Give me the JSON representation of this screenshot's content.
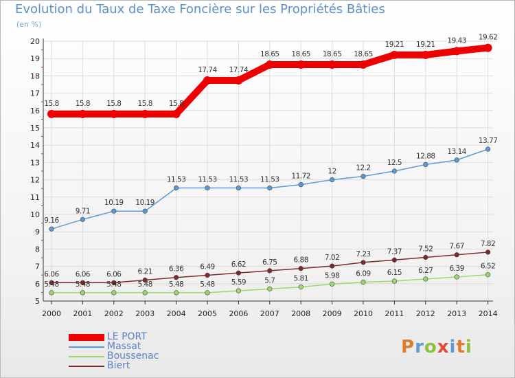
{
  "title": "Evolution du Taux de Taxe Foncière sur les Propriétés Bâties",
  "subtitle": "(en %)",
  "logo": {
    "text": "Proxiti",
    "colors": [
      "#e07b2a",
      "#5b9bd5",
      "#8fc13c",
      "#e04a3a",
      "#5b9bd5",
      "#e07b2a",
      "#8fc13c"
    ]
  },
  "chart_data": {
    "type": "line",
    "x": [
      "2000",
      "2001",
      "2002",
      "2003",
      "2004",
      "2005",
      "2006",
      "2007",
      "2008",
      "2009",
      "2010",
      "2011",
      "2012",
      "2013",
      "2014"
    ],
    "ylim": [
      5,
      20
    ],
    "yticks": [
      "5",
      "6",
      "7",
      "8",
      "9",
      "10",
      "11",
      "12",
      "13",
      "14",
      "15",
      "16",
      "17",
      "18",
      "19",
      "20"
    ],
    "xlabel": "",
    "ylabel": "(en %)",
    "legend_position": "bottom-left",
    "series": [
      {
        "name": "LE PORT",
        "color": "#ee0000",
        "width": 10,
        "values": [
          15.8,
          15.8,
          15.8,
          15.8,
          15.8,
          17.74,
          17.74,
          18.65,
          18.65,
          18.65,
          18.65,
          19.21,
          19.21,
          19.43,
          19.62
        ],
        "labels": [
          "15.8",
          "15.8",
          "15.8",
          "15.8",
          "15.8",
          "17.74",
          "17.74",
          "18.65",
          "18.65",
          "18.65",
          "18.65",
          "19.21",
          "19.21",
          "19.43",
          "19.62"
        ]
      },
      {
        "name": "Massat",
        "color": "#5b9bd5",
        "width": 1.5,
        "values": [
          9.16,
          9.71,
          10.19,
          10.19,
          11.53,
          11.53,
          11.53,
          11.53,
          11.72,
          12,
          12.2,
          12.5,
          12.88,
          13.14,
          13.77
        ],
        "labels": [
          "9.16",
          "9.71",
          "10.19",
          "10.19",
          "11.53",
          "11.53",
          "11.53",
          "11.53",
          "11.72",
          "12",
          "12.2",
          "12.5",
          "12.88",
          "13.14",
          "13.77"
        ]
      },
      {
        "name": "Boussenac",
        "color": "#9bd96b",
        "width": 1.5,
        "values": [
          5.48,
          5.48,
          5.48,
          5.48,
          5.48,
          5.48,
          5.59,
          5.7,
          5.81,
          5.98,
          6.09,
          6.15,
          6.27,
          6.39,
          6.52
        ],
        "labels": [
          "5.48",
          "5.48",
          "5.48",
          "5.48",
          "5.48",
          "5.48",
          "5.59",
          "5.7",
          "5.81",
          "5.98",
          "6.09",
          "6.15",
          "6.27",
          "6.39",
          "6.52"
        ]
      },
      {
        "name": "Biert",
        "color": "#7a2a2a",
        "width": 1.5,
        "values": [
          6.06,
          6.06,
          6.06,
          6.21,
          6.36,
          6.49,
          6.62,
          6.75,
          6.88,
          7.02,
          7.23,
          7.37,
          7.52,
          7.67,
          7.82
        ],
        "labels": [
          "6.06",
          "6.06",
          "6.06",
          "6.21",
          "6.36",
          "6.49",
          "6.62",
          "6.75",
          "6.88",
          "7.02",
          "7.23",
          "7.37",
          "7.52",
          "7.67",
          "7.82"
        ]
      }
    ]
  }
}
